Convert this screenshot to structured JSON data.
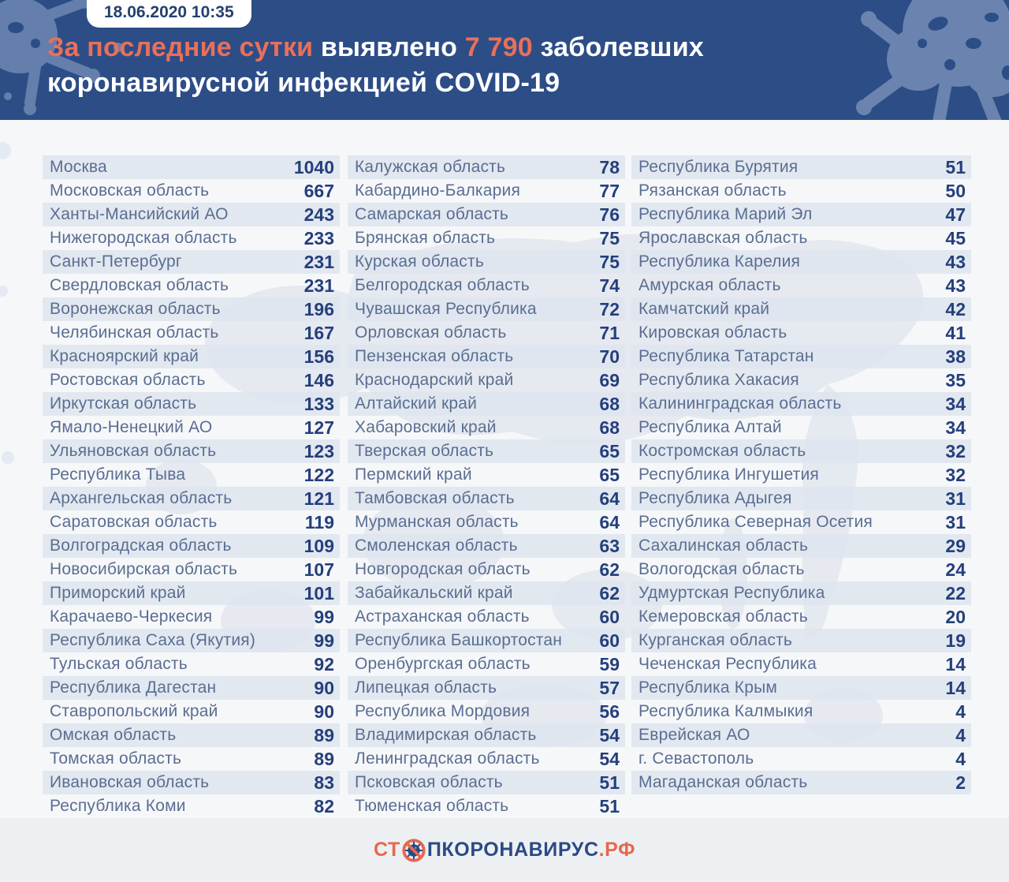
{
  "header": {
    "badge": "18.06.2020 10:35",
    "title": {
      "seg1": "За последние сутки",
      "seg2": " выявлено ",
      "seg3": "7 790",
      "seg4": " заболевших",
      "line2": "коронавирусной инфекцией COVID-19"
    }
  },
  "chart_data": {
    "type": "table",
    "title": "За последние сутки выявлено 7 790 заболевших коронавирусной инфекцией COVID-19",
    "timestamp": "18.06.2020 10:35",
    "total_new_cases": 7790,
    "layout_columns": [
      {
        "rows": [
          [
            "Москва",
            1040
          ],
          [
            "Московская область",
            667
          ],
          [
            "Ханты-Мансийский АО",
            243
          ],
          [
            "Нижегородская область",
            233
          ],
          [
            "Санкт-Петербург",
            231
          ],
          [
            "Свердловская область",
            231
          ],
          [
            "Воронежская область",
            196
          ],
          [
            "Челябинская область",
            167
          ],
          [
            "Красноярский край",
            156
          ],
          [
            "Ростовская область",
            146
          ],
          [
            "Иркутская область",
            133
          ],
          [
            "Ямало-Ненецкий АО",
            127
          ],
          [
            "Ульяновская область",
            123
          ],
          [
            "Республика Тыва",
            122
          ],
          [
            "Архангельская область",
            121
          ],
          [
            "Саратовская область",
            119
          ],
          [
            "Волгоградская область",
            109
          ],
          [
            "Новосибирская область",
            107
          ],
          [
            "Приморский край",
            101
          ],
          [
            "Карачаево-Черкесия",
            99
          ],
          [
            "Республика Саха (Якутия)",
            99
          ],
          [
            "Тульская область",
            92
          ],
          [
            "Республика Дагестан",
            90
          ],
          [
            "Ставропольский край",
            90
          ],
          [
            "Омская область",
            89
          ],
          [
            "Томская область",
            89
          ],
          [
            "Ивановская область",
            83
          ],
          [
            "Республика Коми",
            82
          ]
        ]
      },
      {
        "rows": [
          [
            "Калужская область",
            78
          ],
          [
            "Кабардино-Балкария",
            77
          ],
          [
            "Самарская область",
            76
          ],
          [
            "Брянская область",
            75
          ],
          [
            "Курская область",
            75
          ],
          [
            "Белгородская область",
            74
          ],
          [
            "Чувашская Республика",
            72
          ],
          [
            "Орловская область",
            71
          ],
          [
            "Пензенская область",
            70
          ],
          [
            "Краснодарский край",
            69
          ],
          [
            "Алтайский край",
            68
          ],
          [
            "Хабаровский край",
            68
          ],
          [
            "Тверская область",
            65
          ],
          [
            "Пермский край",
            65
          ],
          [
            "Тамбовская область",
            64
          ],
          [
            "Мурманская область",
            64
          ],
          [
            "Смоленская область",
            63
          ],
          [
            "Новгородская область",
            62
          ],
          [
            "Забайкальский край",
            62
          ],
          [
            "Астраханская область",
            60
          ],
          [
            "Республика Башкортостан",
            60
          ],
          [
            "Оренбургская область",
            59
          ],
          [
            "Липецкая область",
            57
          ],
          [
            "Республика Мордовия",
            56
          ],
          [
            "Владимирская область",
            54
          ],
          [
            "Ленинградская область",
            54
          ],
          [
            "Псковская область",
            51
          ],
          [
            "Тюменская область",
            51
          ]
        ]
      },
      {
        "rows": [
          [
            "Республика Бурятия",
            51
          ],
          [
            "Рязанская область",
            50
          ],
          [
            "Республика Марий Эл",
            47
          ],
          [
            "Ярославская область",
            45
          ],
          [
            "Республика Карелия",
            43
          ],
          [
            "Амурская область",
            43
          ],
          [
            "Камчатский край",
            42
          ],
          [
            "Кировская область",
            41
          ],
          [
            "Республика Татарстан",
            38
          ],
          [
            "Республика Хакасия",
            35
          ],
          [
            "Калининградская область",
            34
          ],
          [
            "Республика Алтай",
            34
          ],
          [
            "Костромская область",
            32
          ],
          [
            "Республика Ингушетия",
            32
          ],
          [
            "Республика Адыгея",
            31
          ],
          [
            "Республика Северная Осетия",
            31
          ],
          [
            "Сахалинская область",
            29
          ],
          [
            "Вологодская область",
            24
          ],
          [
            "Удмуртская Республика",
            22
          ],
          [
            "Кемеровская область",
            20
          ],
          [
            "Курганская область",
            19
          ],
          [
            "Чеченская Республика",
            14
          ],
          [
            "Республика Крым",
            14
          ],
          [
            "Республика Калмыкия",
            4
          ],
          [
            "Еврейская АО",
            4
          ],
          [
            "г. Севастополь",
            4
          ],
          [
            "Магаданская область",
            2
          ]
        ]
      }
    ]
  },
  "footer": {
    "logo_prefix": "СТ",
    "logo_main": "ПКОРОНАВИРУС",
    "logo_suffix": ".РФ"
  },
  "colors": {
    "header_bg": "#2d4d87",
    "accent_red": "#e8705a",
    "row_stripe": "#dee5ee",
    "region_text": "#5a6e92",
    "value_text": "#243f7c",
    "page_bg": "#f6f7f9",
    "footer_bg": "#edf0f3",
    "logo_orange": "#e8674e",
    "logo_navy": "#2b4a85",
    "splat_blue": "#6a84af",
    "map_silhouette": "#d8dfe9"
  }
}
